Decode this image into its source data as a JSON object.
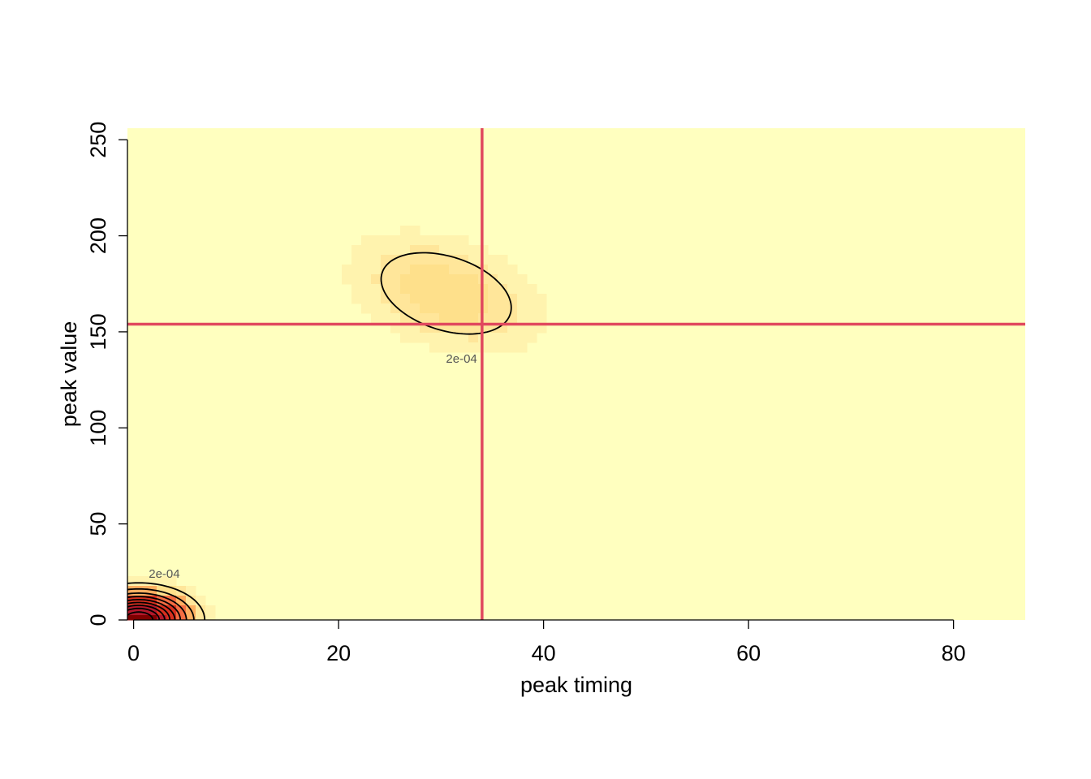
{
  "chart_data": {
    "type": "heatmap",
    "title": "",
    "xlabel": "peak timing",
    "ylabel": "peak value",
    "xlim": [
      -0.6,
      87
    ],
    "ylim": [
      0,
      256
    ],
    "x_ticks": [
      0,
      20,
      40,
      60,
      80
    ],
    "x_tick_labels": [
      "0",
      "20",
      "40",
      "60",
      "80"
    ],
    "y_ticks": [
      0,
      50,
      100,
      150,
      200,
      250
    ],
    "y_tick_labels": [
      "0",
      "50",
      "100",
      "150",
      "200",
      "250"
    ],
    "grid": false,
    "colors": {
      "background": "#FFFFBF",
      "low": "#FFF3AE",
      "mid": "#FDAE61",
      "high": "#D7301F",
      "peak": "#7F0000",
      "reference_line": "#E0485E",
      "contour": "#000000"
    },
    "density_modes": [
      {
        "name": "",
        "x": 0.5,
        "y": 0,
        "sx": 3.0,
        "sy": 9.0,
        "peak_density": 0.002
      },
      {
        "name": "",
        "x": 30.5,
        "y": 170,
        "sx": 6.0,
        "sy": 20.0,
        "rho": -0.35,
        "peak_density": 0.00035
      }
    ],
    "reference_lines": {
      "x": 34,
      "y": 154
    },
    "contour_labels": [
      {
        "text": "2e-04",
        "x": 32,
        "y": 136
      },
      {
        "text": "2e-04",
        "x": 3,
        "y": 24
      }
    ]
  }
}
